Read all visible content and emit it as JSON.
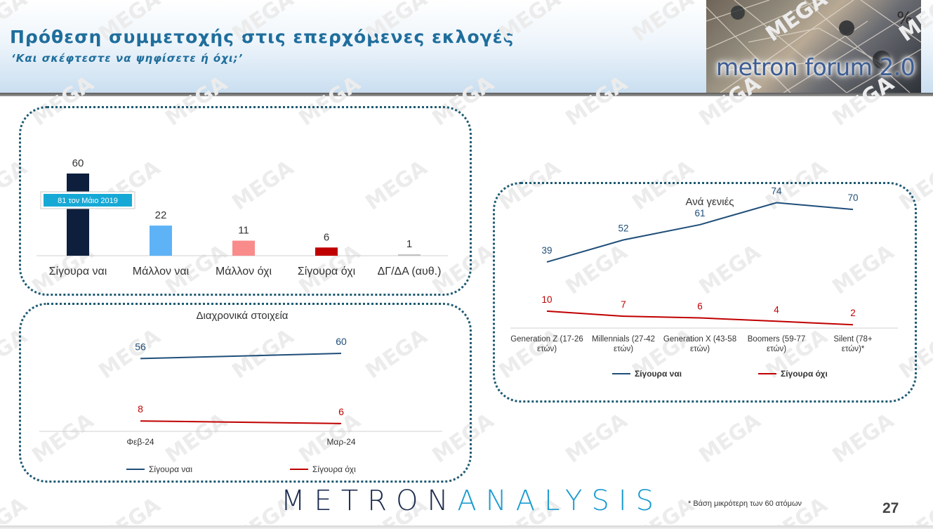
{
  "header": {
    "title": "Πρόθεση συμμετοχής στις επερχόμενες εκλογές",
    "subtitle": "‘Και σκέφτεστε να ψηφίσετε ή όχι;’",
    "logo_text": "metron forum 2.0",
    "logo_symbol": "%"
  },
  "watermark": "MEGA",
  "chart_data": [
    {
      "type": "bar",
      "categories": [
        "Σίγουρα ναι",
        "Μάλλον ναι",
        "Μάλλον όχι",
        "Σίγουρα όχι",
        "ΔΓ/ΔΑ (αυθ.)"
      ],
      "values": [
        60,
        22,
        11,
        6,
        1
      ],
      "colors": [
        "#0d1f3c",
        "#5eb3f7",
        "#f98b8b",
        "#c00000",
        "#bfbfbf"
      ],
      "annotation": "81 τον Μάιο 2019",
      "annotation_color": "#17a9d6"
    },
    {
      "type": "line",
      "title": "Διαχρονικά στοιχεία",
      "categories": [
        "Φεβ-24",
        "Μαρ-24"
      ],
      "series": [
        {
          "name": "Σίγουρα ναι",
          "values": [
            56,
            60
          ],
          "color": "#1f4e79"
        },
        {
          "name": "Σίγουρα όχι",
          "values": [
            8,
            6
          ],
          "color": "#c00000"
        }
      ],
      "ylim": [
        0,
        80
      ],
      "legend": "bottom"
    },
    {
      "type": "line",
      "title": "Ανά γενιές",
      "categories": [
        "Generation Z (17-26 ετών)",
        "Millennials (27-42 ετών)",
        "Generation X (43-58 ετών)",
        "Boomers (59-77 ετών)",
        "Silent (78+ ετών)*"
      ],
      "series": [
        {
          "name": "Σίγουρα ναι",
          "values": [
            39,
            52,
            61,
            74,
            70
          ],
          "color": "#1f4e79"
        },
        {
          "name": "Σίγουρα όχι",
          "values": [
            10,
            7,
            6,
            4,
            2
          ],
          "color": "#c00000"
        }
      ],
      "ylim": [
        0,
        80
      ],
      "legend": "bottom"
    }
  ],
  "footer": {
    "brand_main": "METRON",
    "brand_accent": "ANALYSIS",
    "footnote": "*  Βάση μικρότερη των 60 ατόμων",
    "page_number": "27"
  }
}
